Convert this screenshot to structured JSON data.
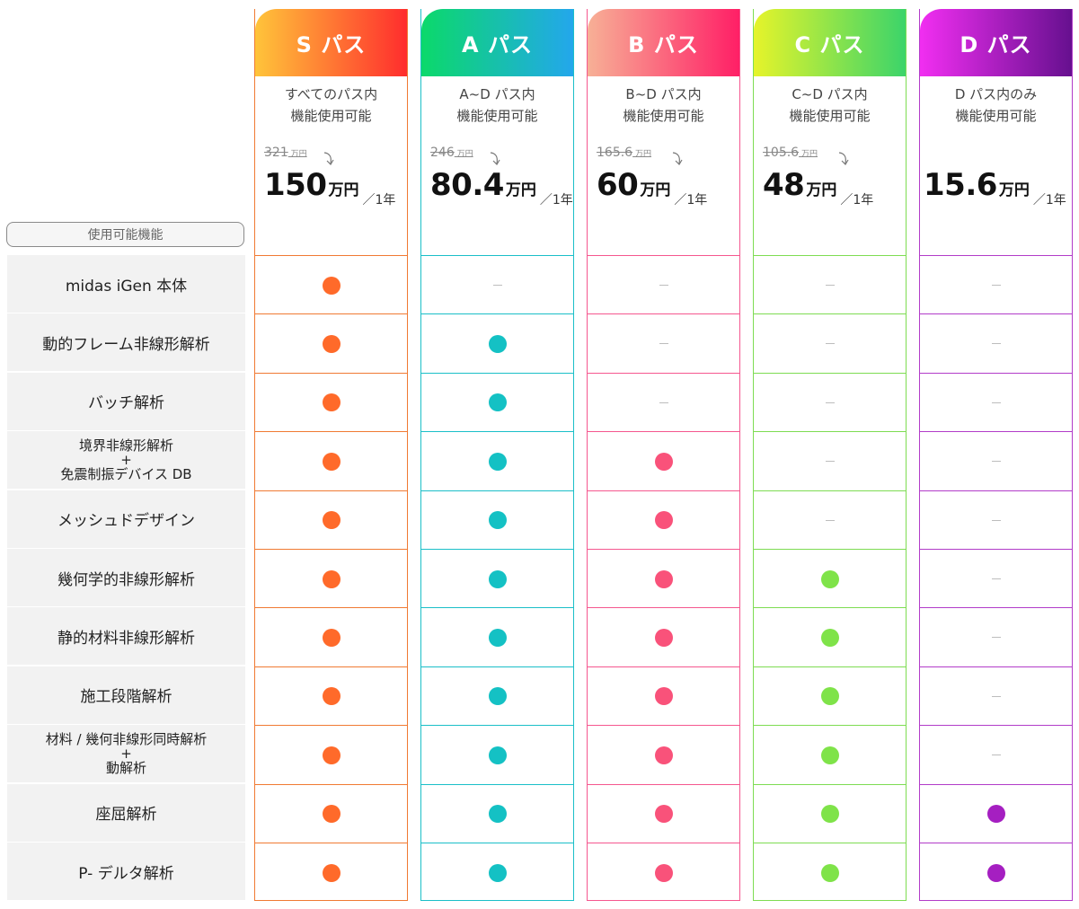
{
  "feature_header": "使用可能機能",
  "features": [
    [
      "midas iGen 本体"
    ],
    [
      "動的フレーム非線形解析"
    ],
    [
      "バッチ解析"
    ],
    [
      "境界非線形解析",
      "+",
      "免震制振デバイス DB"
    ],
    [
      "メッシュドデザイン"
    ],
    [
      "幾何学的非線形解析"
    ],
    [
      "静的材料非線形解析"
    ],
    [
      "施工段階解析"
    ],
    [
      "材料 / 幾何非線形同時解析",
      "+",
      "動解析"
    ],
    [
      "座屈解析"
    ],
    [
      "P- デルタ解析"
    ]
  ],
  "plans": [
    {
      "name": "S パス",
      "gradient": [
        "#ffc43a",
        "#ff2d2d"
      ],
      "border": "#f07a33",
      "dot": "#ff6a2a",
      "desc1": "すべてのパス内",
      "desc2": "機能使用可能",
      "old_price": "321",
      "old_unit": "万円",
      "price": "150",
      "unit": "万円",
      "per": "／1年",
      "available": [
        true,
        true,
        true,
        true,
        true,
        true,
        true,
        true,
        true,
        true,
        true
      ]
    },
    {
      "name": "A パス",
      "gradient": [
        "#0bd96a",
        "#23a7ec"
      ],
      "border": "#1bbfc8",
      "dot": "#14c1c4",
      "desc1": "A~D パス内",
      "desc2": "機能使用可能",
      "old_price": "246",
      "old_unit": "万円",
      "price": "80.4",
      "unit": "万円",
      "per": "／1年",
      "available": [
        false,
        true,
        true,
        true,
        true,
        true,
        true,
        true,
        true,
        true,
        true
      ]
    },
    {
      "name": "B パス",
      "gradient": [
        "#f7b096",
        "#ff1f66"
      ],
      "border": "#f5578f",
      "dot": "#f9527a",
      "desc1": "B~D パス内",
      "desc2": "機能使用可能",
      "old_price": "165.6",
      "old_unit": "万円",
      "price": "60",
      "unit": "万円",
      "per": "／1年",
      "available": [
        false,
        false,
        false,
        true,
        true,
        true,
        true,
        true,
        true,
        true,
        true
      ]
    },
    {
      "name": "C パス",
      "gradient": [
        "#e6f42a",
        "#3bd46a"
      ],
      "border": "#7edc52",
      "dot": "#7fe349",
      "desc1": "C~D パス内",
      "desc2": "機能使用可能",
      "old_price": "105.6",
      "old_unit": "万円",
      "price": "48",
      "unit": "万円",
      "per": "／1年",
      "available": [
        false,
        false,
        false,
        false,
        false,
        true,
        true,
        true,
        true,
        true,
        true
      ]
    },
    {
      "name": "D パス",
      "gradient": [
        "#f12ef1",
        "#66108f"
      ],
      "border": "#b23cc9",
      "dot": "#a51fc1",
      "desc1": "D パス内のみ",
      "desc2": "機能使用可能",
      "old_price": "",
      "old_unit": "",
      "price": "15.6",
      "unit": "万円",
      "per": "／1年",
      "available": [
        false,
        false,
        false,
        false,
        false,
        false,
        false,
        false,
        false,
        true,
        true
      ]
    }
  ]
}
